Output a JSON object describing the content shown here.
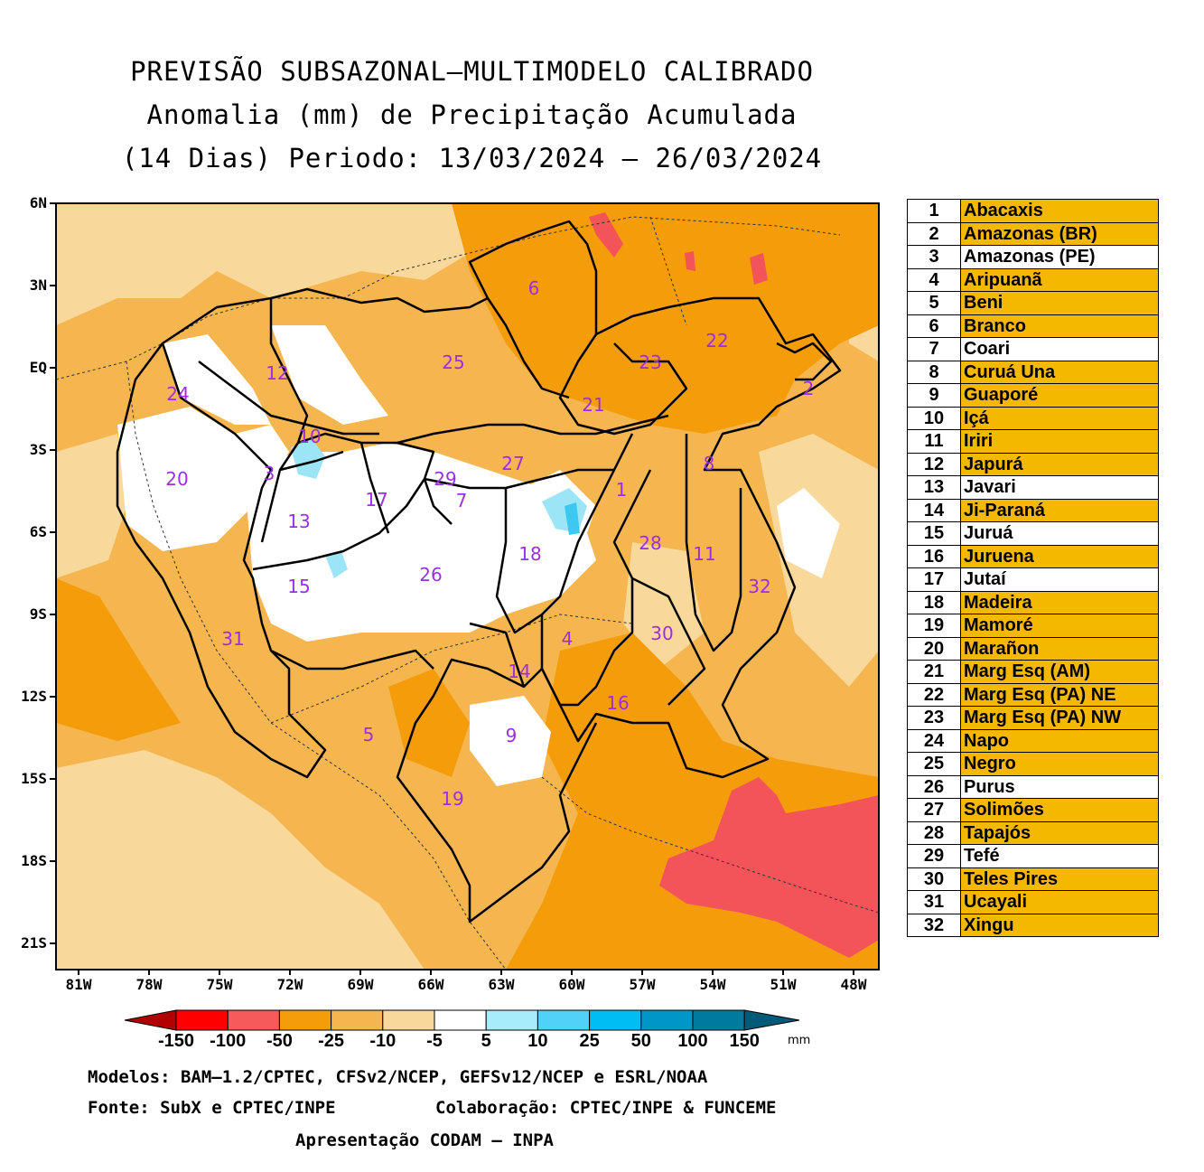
{
  "title": {
    "line1": "PREVISÃO SUBSAZONAL—MULTIMODELO CALIBRADO",
    "line2": "Anomalia (mm) de Precipitação Acumulada",
    "line3": "(14 Dias) Periodo: 13/03/2024 — 26/03/2024"
  },
  "axes": {
    "lat_labels": [
      "6N",
      "3N",
      "EQ",
      "3S",
      "6S",
      "9S",
      "12S",
      "15S",
      "18S",
      "21S"
    ],
    "lon_labels": [
      "81W",
      "78W",
      "75W",
      "72W",
      "69W",
      "66W",
      "63W",
      "60W",
      "57W",
      "54W",
      "51W",
      "48W"
    ]
  },
  "map_colors": {
    "light_orange": "#F9D89B",
    "orange": "#F5B54F",
    "dark_orange": "#F59C0A",
    "red": "#F2545A",
    "white": "#FFFFFF",
    "light_blue": "#9CE5F7",
    "blue": "#3CC8F0"
  },
  "basin_labels": [
    "1",
    "2",
    "3",
    "4",
    "5",
    "6",
    "7",
    "8",
    "9",
    "10",
    "11",
    "12",
    "13",
    "14",
    "15",
    "16",
    "17",
    "18",
    "19",
    "20",
    "21",
    "22",
    "23",
    "24",
    "25",
    "26",
    "27",
    "28",
    "29",
    "30",
    "31",
    "32"
  ],
  "colorbar": {
    "units": "mm",
    "tick_labels": [
      "-150",
      "-100",
      "-50",
      "-25",
      "-10",
      "-5",
      "5",
      "10",
      "25",
      "50",
      "100",
      "150"
    ],
    "colors": [
      "#B30000",
      "#FF0000",
      "#F75A5A",
      "#F59C0A",
      "#F5B54F",
      "#F9D89B",
      "#FFFFFF",
      "#A6ECFA",
      "#4FD2F5",
      "#00BDF2",
      "#0096C8",
      "#007A9E",
      "#005A78"
    ]
  },
  "legend": [
    {
      "num": "1",
      "name": "Abacaxis",
      "color": "#F5B800"
    },
    {
      "num": "2",
      "name": "Amazonas (BR)",
      "color": "#F5B800"
    },
    {
      "num": "3",
      "name": "Amazonas (PE)",
      "color": "#FFFFFF"
    },
    {
      "num": "4",
      "name": "Aripuanã",
      "color": "#F5B800"
    },
    {
      "num": "5",
      "name": "Beni",
      "color": "#F5B800"
    },
    {
      "num": "6",
      "name": "Branco",
      "color": "#F5B800"
    },
    {
      "num": "7",
      "name": "Coari",
      "color": "#FFFFFF"
    },
    {
      "num": "8",
      "name": "Curuá Una",
      "color": "#F5B800"
    },
    {
      "num": "9",
      "name": "Guaporé",
      "color": "#F5B800"
    },
    {
      "num": "10",
      "name": "Içá",
      "color": "#F5B800"
    },
    {
      "num": "11",
      "name": "Iriri",
      "color": "#F5B800"
    },
    {
      "num": "12",
      "name": "Japurá",
      "color": "#F5B800"
    },
    {
      "num": "13",
      "name": "Javari",
      "color": "#FFFFFF"
    },
    {
      "num": "14",
      "name": "Ji-Paraná",
      "color": "#F5B800"
    },
    {
      "num": "15",
      "name": "Juruá",
      "color": "#FFFFFF"
    },
    {
      "num": "16",
      "name": "Juruena",
      "color": "#F5B800"
    },
    {
      "num": "17",
      "name": "Jutaí",
      "color": "#FFFFFF"
    },
    {
      "num": "18",
      "name": "Madeira",
      "color": "#F5B800"
    },
    {
      "num": "19",
      "name": "Mamoré",
      "color": "#F5B800"
    },
    {
      "num": "20",
      "name": "Marañon",
      "color": "#F5B800"
    },
    {
      "num": "21",
      "name": "Marg Esq (AM)",
      "color": "#F5B800"
    },
    {
      "num": "22",
      "name": "Marg Esq (PA) NE",
      "color": "#F5B800"
    },
    {
      "num": "23",
      "name": "Marg Esq (PA) NW",
      "color": "#F5B800"
    },
    {
      "num": "24",
      "name": "Napo",
      "color": "#F5B800"
    },
    {
      "num": "25",
      "name": "Negro",
      "color": "#F5B800"
    },
    {
      "num": "26",
      "name": "Purus",
      "color": "#FFFFFF"
    },
    {
      "num": "27",
      "name": "Solimões",
      "color": "#F5B800"
    },
    {
      "num": "28",
      "name": "Tapajós",
      "color": "#F5B800"
    },
    {
      "num": "29",
      "name": "Tefé",
      "color": "#FFFFFF"
    },
    {
      "num": "30",
      "name": "Teles Pires",
      "color": "#F5B800"
    },
    {
      "num": "31",
      "name": "Ucayali",
      "color": "#F5B800"
    },
    {
      "num": "32",
      "name": "Xingu",
      "color": "#F5B800"
    }
  ],
  "footer": {
    "models": "Modelos: BAM—1.2/CPTEC, CFSv2/NCEP, GEFSv12/NCEP e ESRL/NOAA",
    "source": "Fonte: SubX e CPTEC/INPE",
    "collab": "Colaboração: CPTEC/INPE & FUNCEME",
    "presentation": "Apresentação CODAM — INPA"
  }
}
